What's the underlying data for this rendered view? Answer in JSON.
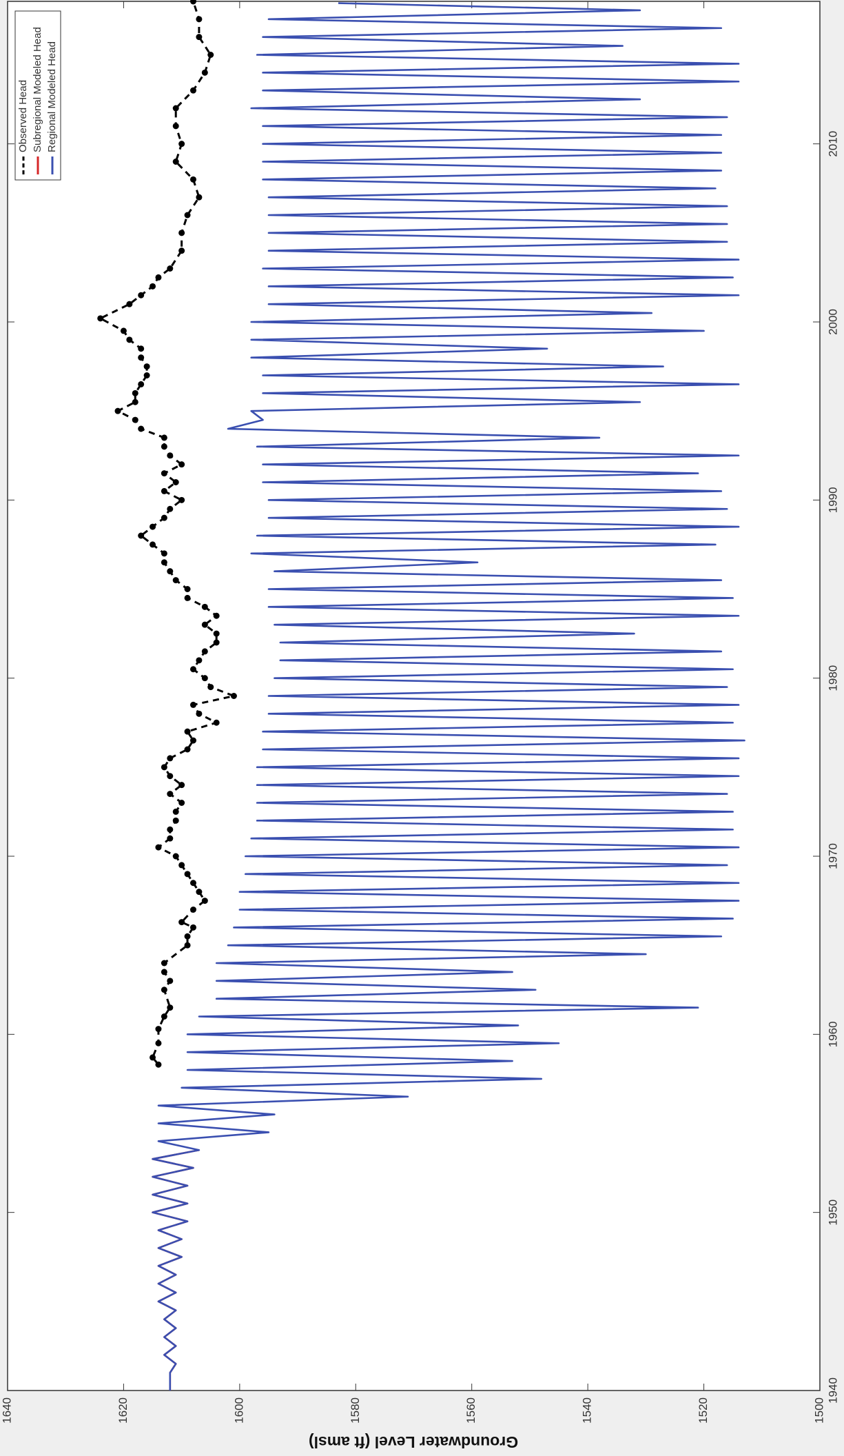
{
  "chart_data": {
    "type": "line",
    "y_label": "Groundwater Level (ft amsl)",
    "xlim": [
      1940,
      2018
    ],
    "xticks": [
      1940,
      1950,
      1960,
      1970,
      1980,
      1990,
      2000,
      2010
    ],
    "ylim": [
      1500,
      1640
    ],
    "yticks": [
      1500,
      1520,
      1540,
      1560,
      1580,
      1600,
      1620,
      1640
    ],
    "legend": "upper right",
    "series": [
      {
        "name": "Observed Head",
        "color": "#000000",
        "style": "dashed-dots",
        "x": [
          1958.3,
          1958.7,
          1959.5,
          1960.3,
          1961,
          1961.5,
          1962.5,
          1963,
          1963.5,
          1964,
          1965,
          1965.5,
          1966,
          1966.3,
          1967,
          1967.5,
          1968,
          1968.5,
          1969,
          1969.5,
          1970,
          1970.5,
          1971,
          1971.5,
          1972,
          1972.5,
          1973,
          1973.5,
          1974,
          1974.5,
          1975,
          1975.5,
          1976,
          1976.5,
          1977,
          1977.5,
          1978,
          1978.5,
          1979,
          1979.5,
          1980,
          1980.5,
          1981,
          1981.5,
          1982,
          1982.5,
          1983,
          1983.5,
          1984,
          1984.5,
          1985,
          1985.5,
          1986,
          1986.5,
          1987,
          1987.5,
          1988,
          1988.5,
          1989,
          1989.5,
          1990,
          1990.5,
          1991,
          1991.5,
          1992,
          1992.5,
          1993,
          1993.5,
          1994,
          1994.5,
          1995,
          1995.5,
          1996,
          1996.5,
          1997,
          1997.5,
          1998,
          1998.5,
          1999,
          1999.5,
          2000.2,
          2001,
          2001.5,
          2002,
          2002.5,
          2003,
          2004,
          2005,
          2006,
          2007,
          2008,
          2009,
          2010,
          2011,
          2012,
          2013,
          2014,
          2015,
          2016,
          2017,
          2018
        ],
        "values": [
          1614,
          1615,
          1614,
          1614,
          1613,
          1612,
          1613,
          1612,
          1613,
          1613,
          1609,
          1609,
          1608,
          1610,
          1608,
          1606,
          1607,
          1608,
          1609,
          1610,
          1611,
          1614,
          1612,
          1612,
          1611,
          1611,
          1610,
          1612,
          1610,
          1612,
          1613,
          1612,
          1609,
          1608,
          1609,
          1604,
          1607,
          1608,
          1601,
          1605,
          1606,
          1608,
          1607,
          1606,
          1604,
          1604,
          1606,
          1604,
          1606,
          1609,
          1609,
          1611,
          1612,
          1613,
          1613,
          1615,
          1617,
          1615,
          1613,
          1612,
          1610,
          1613,
          1611,
          1613,
          1610,
          1612,
          1613,
          1613,
          1617,
          1618,
          1621,
          1618,
          1618,
          1617,
          1616,
          1616,
          1617,
          1617,
          1619,
          1620,
          1624,
          1619,
          1617,
          1615,
          1614,
          1612,
          1610,
          1610,
          1609,
          1607,
          1608,
          1611,
          1610,
          1611,
          1611,
          1608,
          1606,
          1605,
          1607,
          1607,
          1608
        ]
      },
      {
        "name": "Subregional Modeled Head",
        "color": "#d62728",
        "style": "solid",
        "x": [
          1940,
          1940.5,
          1941,
          1941.5,
          1942,
          1942.5,
          1943,
          1943.5,
          1944,
          1944.5,
          1945,
          1945.5,
          1946,
          1946.5,
          1947,
          1947.5,
          1948,
          1948.5,
          1949,
          1949.5,
          1950,
          1950.5,
          1951,
          1951.5,
          1952,
          1952.5,
          1953,
          1953.5
        ],
        "values": [
          1612,
          1612,
          1612,
          1611,
          1613,
          1611,
          1613,
          1611,
          1613,
          1611,
          1614,
          1611,
          1614,
          1611,
          1614,
          1610,
          1614,
          1610,
          1614,
          1609,
          1615,
          1609,
          1615,
          1609,
          1615,
          1608,
          1615,
          1607
        ]
      },
      {
        "name": "Regional Modeled Head",
        "color": "#3a4fb0",
        "style": "solid",
        "x": [
          1940,
          1940.5,
          1941,
          1941.5,
          1942,
          1942.5,
          1943,
          1943.5,
          1944,
          1944.5,
          1945,
          1945.5,
          1946,
          1946.5,
          1947,
          1947.5,
          1948,
          1948.5,
          1949,
          1949.5,
          1950,
          1950.5,
          1951,
          1951.5,
          1952,
          1952.5,
          1953,
          1953.5,
          1954,
          1954.5,
          1955,
          1955.5,
          1956,
          1956.5,
          1957,
          1957.5,
          1958,
          1958.5,
          1959,
          1959.5,
          1960,
          1960.5,
          1961,
          1961.5,
          1962,
          1962.5,
          1963,
          1963.5,
          1964,
          1964.5,
          1965,
          1965.5,
          1966,
          1966.5,
          1967,
          1967.5,
          1968,
          1968.5,
          1969,
          1969.5,
          1970,
          1970.5,
          1971,
          1971.5,
          1972,
          1972.5,
          1973,
          1973.5,
          1974,
          1974.5,
          1975,
          1975.5,
          1976,
          1976.5,
          1977,
          1977.5,
          1978,
          1978.5,
          1979,
          1979.5,
          1980,
          1980.5,
          1981,
          1981.5,
          1982,
          1982.5,
          1983,
          1983.5,
          1984,
          1984.5,
          1985,
          1985.5,
          1986,
          1986.5,
          1987,
          1987.5,
          1988,
          1988.5,
          1989,
          1989.5,
          1990,
          1990.5,
          1991,
          1991.5,
          1992,
          1992.5,
          1993,
          1993.5,
          1994,
          1994.5,
          1995,
          1995.5,
          1996,
          1996.5,
          1997,
          1997.5,
          1998,
          1998.5,
          1999,
          1999.5,
          2000,
          2000.5,
          2001,
          2001.5,
          2002,
          2002.5,
          2003,
          2003.5,
          2004,
          2004.5,
          2005,
          2005.5,
          2006,
          2006.5,
          2007,
          2007.5,
          2008,
          2008.5,
          2009,
          2009.5,
          2010,
          2010.5,
          2011,
          2011.5,
          2012,
          2012.5,
          2013,
          2013.5,
          2014,
          2014.5,
          2015,
          2015.5,
          2016,
          2016.5,
          2017,
          2017.5,
          2017.9
        ],
        "values": [
          1612,
          1612,
          1612,
          1611,
          1613,
          1611,
          1613,
          1611,
          1613,
          1611,
          1614,
          1611,
          1614,
          1611,
          1614,
          1610,
          1614,
          1610,
          1614,
          1609,
          1615,
          1609,
          1615,
          1609,
          1615,
          1608,
          1615,
          1607,
          1614,
          1595,
          1614,
          1594,
          1614,
          1571,
          1610,
          1548,
          1609,
          1553,
          1609,
          1545,
          1609,
          1552,
          1607,
          1521,
          1604,
          1549,
          1604,
          1553,
          1604,
          1530,
          1602,
          1517,
          1601,
          1515,
          1600,
          1514,
          1600,
          1514,
          1599,
          1516,
          1599,
          1514,
          1598,
          1515,
          1597,
          1515,
          1597,
          1516,
          1597,
          1514,
          1597,
          1514,
          1596,
          1513,
          1596,
          1515,
          1595,
          1514,
          1595,
          1516,
          1594,
          1515,
          1593,
          1517,
          1593,
          1532,
          1594,
          1514,
          1595,
          1515,
          1595,
          1517,
          1594,
          1559,
          1598,
          1518,
          1597,
          1514,
          1595,
          1516,
          1595,
          1517,
          1596,
          1521,
          1596,
          1514,
          1597,
          1538,
          1602,
          1596,
          1598,
          1531,
          1596,
          1514,
          1596,
          1527,
          1598,
          1547,
          1598,
          1520,
          1598,
          1529,
          1595,
          1514,
          1595,
          1515,
          1596,
          1514,
          1595,
          1516,
          1595,
          1516,
          1595,
          1516,
          1595,
          1518,
          1596,
          1517,
          1596,
          1517,
          1596,
          1517,
          1596,
          1516,
          1598,
          1531,
          1596,
          1514,
          1596,
          1514,
          1597,
          1534,
          1596,
          1517,
          1595,
          1531,
          1583
        ]
      }
    ]
  }
}
